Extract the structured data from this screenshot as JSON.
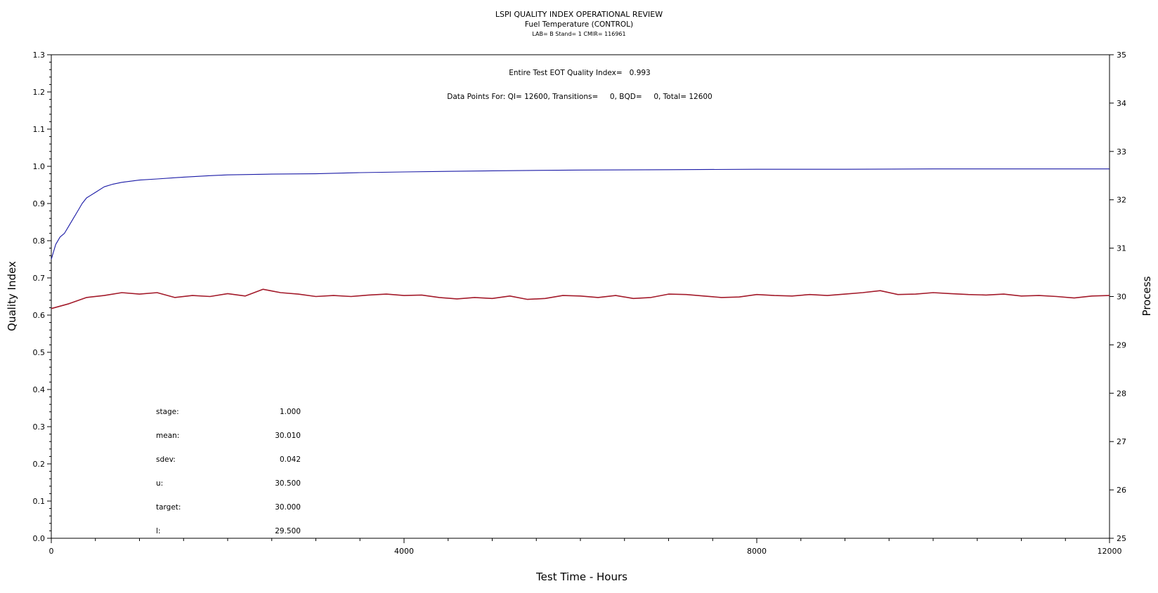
{
  "chart_data": {
    "type": "line",
    "title": "LSPI QUALITY INDEX OPERATIONAL REVIEW",
    "subtitle": "Fuel Temperature (CONTROL)",
    "subtitle2": "LAB= B Stand= 1 CMIR= 116961",
    "annotations": [
      "Entire Test EOT Quality Index=   0.993",
      "Data Points For: QI= 12600, Transitions=     0, BQD=     0, Total= 12600"
    ],
    "xlabel": "Test Time - Hours",
    "ylabel_left": "Quality Index",
    "ylabel_right": "Process",
    "xlim": [
      0,
      12000
    ],
    "ylim_left": [
      0.0,
      1.3
    ],
    "ylim_right": [
      25,
      35
    ],
    "x_ticks": [
      0,
      4000,
      8000,
      12000
    ],
    "x_tick_labels": [
      "0",
      "4000",
      "8000",
      "12000"
    ],
    "y_left_ticks": [
      0.0,
      0.1,
      0.2,
      0.3,
      0.4,
      0.5,
      0.6,
      0.7,
      0.8,
      0.9,
      1.0,
      1.1,
      1.2,
      1.3
    ],
    "y_left_tick_labels": [
      "0.0",
      "0.1",
      "0.2",
      "0.3",
      "0.4",
      "0.5",
      "0.6",
      "0.7",
      "0.8",
      "0.9",
      "1.0",
      "1.1",
      "1.2",
      "1.3"
    ],
    "y_right_ticks": [
      25,
      26,
      27,
      28,
      29,
      30,
      31,
      32,
      33,
      34,
      35
    ],
    "y_right_tick_labels": [
      "25",
      "26",
      "27",
      "28",
      "29",
      "30",
      "31",
      "32",
      "33",
      "34",
      "35"
    ],
    "grid": false,
    "legend": "none",
    "series": [
      {
        "axis": "left",
        "color": "#1a1aa6",
        "x": [
          0,
          50,
          100,
          150,
          200,
          250,
          300,
          350,
          400,
          500,
          600,
          700,
          800,
          1000,
          1200,
          1500,
          1800,
          2000,
          2500,
          3000,
          3500,
          4000,
          5000,
          6000,
          7000,
          8000,
          9000,
          10000,
          11000,
          12000
        ],
        "values": [
          0.75,
          0.79,
          0.81,
          0.82,
          0.84,
          0.86,
          0.88,
          0.9,
          0.915,
          0.93,
          0.945,
          0.952,
          0.957,
          0.963,
          0.966,
          0.971,
          0.975,
          0.977,
          0.979,
          0.98,
          0.983,
          0.985,
          0.988,
          0.99,
          0.991,
          0.992,
          0.992,
          0.993,
          0.993,
          0.993
        ]
      },
      {
        "axis": "right",
        "color": "#a31a2a",
        "x": [
          0,
          200,
          400,
          600,
          800,
          1000,
          1200,
          1400,
          1600,
          1800,
          2000,
          2200,
          2400,
          2600,
          2800,
          3000,
          3200,
          3400,
          3600,
          3800,
          4000,
          4200,
          4400,
          4600,
          4800,
          5000,
          5200,
          5400,
          5600,
          5800,
          6000,
          6200,
          6400,
          6600,
          6800,
          7000,
          7200,
          7400,
          7600,
          7800,
          8000,
          8200,
          8400,
          8600,
          8800,
          9000,
          9200,
          9400,
          9600,
          9800,
          10000,
          10200,
          10400,
          10600,
          10800,
          11000,
          11200,
          11400,
          11600,
          11800,
          12000
        ],
        "values": [
          29.75,
          29.85,
          29.98,
          30.02,
          30.08,
          30.05,
          30.08,
          29.98,
          30.02,
          30.0,
          30.06,
          30.01,
          30.15,
          30.08,
          30.05,
          30.0,
          30.02,
          30.0,
          30.03,
          30.05,
          30.02,
          30.03,
          29.98,
          29.95,
          29.98,
          29.96,
          30.01,
          29.94,
          29.96,
          30.02,
          30.01,
          29.98,
          30.02,
          29.96,
          29.98,
          30.05,
          30.04,
          30.01,
          29.98,
          29.99,
          30.04,
          30.02,
          30.01,
          30.04,
          30.02,
          30.05,
          30.08,
          30.12,
          30.04,
          30.05,
          30.08,
          30.06,
          30.04,
          30.03,
          30.05,
          30.01,
          30.02,
          30.0,
          29.97,
          30.01,
          30.02
        ]
      }
    ],
    "stats": [
      {
        "label": "stage:",
        "value": "1.000"
      },
      {
        "label": "mean:",
        "value": "30.010"
      },
      {
        "label": "sdev:",
        "value": "0.042"
      },
      {
        "label": "u:",
        "value": "30.500"
      },
      {
        "label": "target:",
        "value": "30.000"
      },
      {
        "label": "l:",
        "value": "29.500"
      }
    ]
  }
}
